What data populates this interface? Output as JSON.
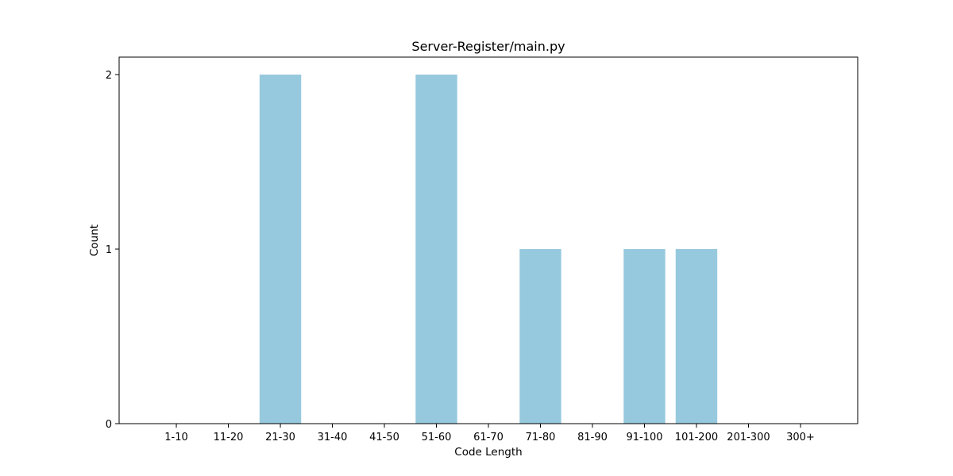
{
  "chart_data": {
    "type": "bar",
    "title": "Server-Register/main.py",
    "xlabel": "Code Length",
    "ylabel": "Count",
    "categories": [
      "1-10",
      "11-20",
      "21-30",
      "31-40",
      "41-50",
      "51-60",
      "61-70",
      "71-80",
      "81-90",
      "91-100",
      "101-200",
      "201-300",
      "300+"
    ],
    "values": [
      0,
      0,
      2,
      0,
      0,
      2,
      0,
      1,
      0,
      1,
      1,
      0,
      0
    ],
    "ylim": [
      0,
      2.1
    ],
    "yticks": [
      "0",
      "1",
      "2"
    ],
    "bar_color": "#96c9dd",
    "grid": false,
    "legend": "none"
  }
}
